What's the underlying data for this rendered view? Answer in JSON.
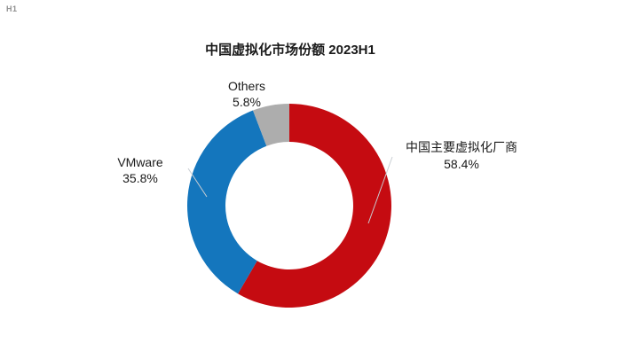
{
  "page": {
    "marker": "H1",
    "background_color": "#ffffff"
  },
  "chart_data": {
    "type": "pie",
    "subtype": "donut",
    "title": "中国虚拟化市场份额 2023H1",
    "start_angle_deg": 0,
    "direction": "clockwise",
    "inner_radius_ratio": 0.626,
    "total": 100,
    "segments": [
      {
        "label": "中国主要虚拟化厂商",
        "value": 58.4,
        "value_text": "58.4%",
        "color": "#c50b11",
        "label_side": "right"
      },
      {
        "label": "VMware",
        "value": 35.8,
        "value_text": "35.8%",
        "color": "#1476bd",
        "label_side": "left"
      },
      {
        "label": "Others",
        "value": 5.8,
        "value_text": "5.8%",
        "color": "#adadad",
        "label_side": "top"
      }
    ],
    "legend_position": "labels-outside-with-leader-lines",
    "text_color": "#1a1a1a",
    "leader_line_color": "#c9ced3",
    "grid": false
  }
}
